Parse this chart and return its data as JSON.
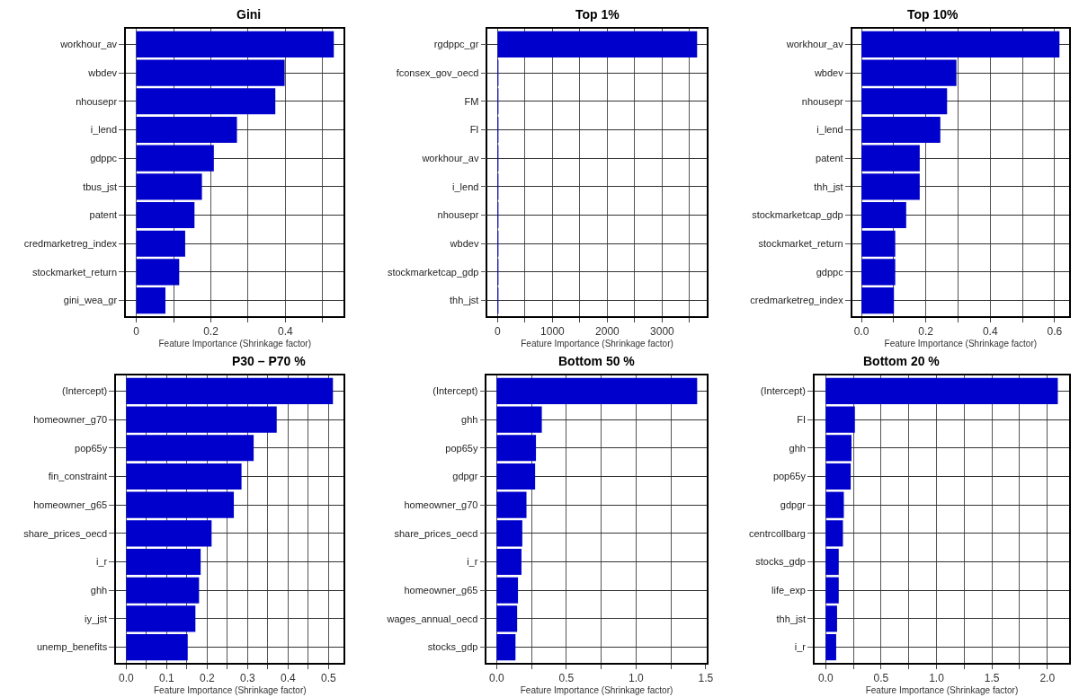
{
  "chart_data": [
    {
      "type": "bar",
      "orientation": "horizontal",
      "title": "Gini",
      "xlabel": "Feature Importance (Shrinkage factor)",
      "grid": true,
      "categories": [
        "workhour_av",
        "wbdev",
        "nhousepr",
        "i_lend",
        "gdppc",
        "tbus_jst",
        "patent",
        "credmarketreg_index",
        "stockmarket_return",
        "gini_wea_gr"
      ],
      "values": [
        0.53,
        0.398,
        0.373,
        0.27,
        0.208,
        0.176,
        0.156,
        0.131,
        0.115,
        0.078
      ],
      "color": "#0000cc",
      "xlim": [
        -0.028,
        0.557
      ],
      "xticks": [
        0,
        {
          "value": 0.1,
          "label": null
        },
        {
          "value": 0.2,
          "label": "0.2"
        },
        {
          "value": 0.3,
          "label": null
        },
        {
          "value": 0.4,
          "label": "0.4"
        },
        {
          "value": 0.5,
          "label": null
        }
      ]
    },
    {
      "type": "bar",
      "orientation": "horizontal",
      "title": "Top 1%",
      "xlabel": "Feature Importance (Shrinkage factor)",
      "grid": true,
      "categories": [
        "rgdppc_gr",
        "fconsex_gov_oecd",
        "FM",
        "FI",
        "workhour_av",
        "i_lend",
        "nhousepr",
        "wbdev",
        "stockmarketcap_gdp",
        "thh_jst"
      ],
      "values": [
        3637,
        5,
        5,
        5,
        5,
        5,
        5,
        5,
        5,
        5
      ],
      "color": "#0000cc",
      "xlim": [
        -181,
        3808
      ],
      "xticks": [
        0,
        {
          "value": 500,
          "label": null
        },
        1000,
        {
          "value": 1500,
          "label": null
        },
        2000,
        {
          "value": 2500,
          "label": null
        },
        3000,
        {
          "value": 3500,
          "label": null
        }
      ]
    },
    {
      "type": "bar",
      "orientation": "horizontal",
      "title": "Top 10%",
      "xlabel": "Feature Importance (Shrinkage factor)",
      "grid": true,
      "categories": [
        "workhour_av",
        "wbdev",
        "nhousepr",
        "i_lend",
        "patent",
        "thh_jst",
        "stockmarketcap_gdp",
        "stockmarket_return",
        "gdppc",
        "credmarketreg_index"
      ],
      "values": [
        0.615,
        0.295,
        0.266,
        0.245,
        0.181,
        0.181,
        0.139,
        0.105,
        0.105,
        0.101
      ],
      "color": "#0000cc",
      "xlim": [
        -0.029,
        0.645
      ],
      "xticks": [
        {
          "value": 0,
          "label": "0.0"
        },
        {
          "value": 0.1,
          "label": null
        },
        {
          "value": 0.2,
          "label": "0.2"
        },
        {
          "value": 0.3,
          "label": null
        },
        {
          "value": 0.4,
          "label": "0.4"
        },
        {
          "value": 0.5,
          "label": null
        },
        {
          "value": 0.6,
          "label": "0.6"
        }
      ]
    },
    {
      "type": "bar",
      "orientation": "horizontal",
      "title": "P30 – P70 %",
      "xlabel": "Feature Importance (Shrinkage factor)",
      "grid": true,
      "categories": [
        "(Intercept)",
        "homeowner_g70",
        "pop65y",
        "fin_constraint",
        "homeowner_g65",
        "share_prices_oecd",
        "i_r",
        "ghh",
        "iy_jst",
        "unemp_benefits"
      ],
      "values": [
        0.511,
        0.372,
        0.315,
        0.285,
        0.266,
        0.211,
        0.184,
        0.18,
        0.171,
        0.152
      ],
      "color": "#0000cc",
      "xlim": [
        -0.025,
        0.538
      ],
      "xticks": [
        {
          "value": 0,
          "label": "0.0"
        },
        {
          "value": 0.05,
          "label": null
        },
        0.1,
        {
          "value": 0.15,
          "label": null
        },
        0.2,
        {
          "value": 0.25,
          "label": null
        },
        0.3,
        {
          "value": 0.35,
          "label": null
        },
        0.4,
        {
          "value": 0.45,
          "label": null
        },
        0.5
      ]
    },
    {
      "type": "bar",
      "orientation": "horizontal",
      "title": "Bottom 50 %",
      "xlabel": "Feature Importance (Shrinkage factor)",
      "grid": true,
      "categories": [
        "(Intercept)",
        "ghh",
        "pop65y",
        "gdpgr",
        "homeowner_g70",
        "share_prices_oecd",
        "i_r",
        "homeowner_g65",
        "wages_annual_oecd",
        "stocks_gdp"
      ],
      "values": [
        1.439,
        0.324,
        0.282,
        0.276,
        0.214,
        0.184,
        0.178,
        0.153,
        0.147,
        0.135
      ],
      "color": "#0000cc",
      "xlim": [
        -0.071,
        1.506
      ],
      "xticks": [
        {
          "value": 0,
          "label": "0.0"
        },
        {
          "value": 0.25,
          "label": null
        },
        0.5,
        {
          "value": 0.75,
          "label": null
        },
        {
          "value": 1,
          "label": "1.0"
        },
        {
          "value": 1.25,
          "label": null
        },
        1.5
      ]
    },
    {
      "type": "bar",
      "orientation": "horizontal",
      "title": "Bottom 20 %",
      "xlabel": "Feature Importance (Shrinkage factor)",
      "grid": true,
      "categories": [
        "(Intercept)",
        "FI",
        "ghh",
        "pop65y",
        "gdpgr",
        "centrcollbarg",
        "stocks_gdp",
        "life_exp",
        "thh_jst",
        "i_r"
      ],
      "values": [
        2.095,
        0.264,
        0.233,
        0.226,
        0.164,
        0.156,
        0.118,
        0.118,
        0.103,
        0.095
      ],
      "color": "#0000cc",
      "xlim": [
        -0.1,
        2.197
      ],
      "xticks": [
        {
          "value": 0,
          "label": "0.0"
        },
        {
          "value": 0.25,
          "label": null
        },
        0.5,
        {
          "value": 0.75,
          "label": null
        },
        {
          "value": 1,
          "label": "1.0"
        },
        {
          "value": 1.25,
          "label": null
        },
        1.5,
        {
          "value": 1.75,
          "label": null
        },
        {
          "value": 2,
          "label": "2.0"
        }
      ]
    }
  ]
}
